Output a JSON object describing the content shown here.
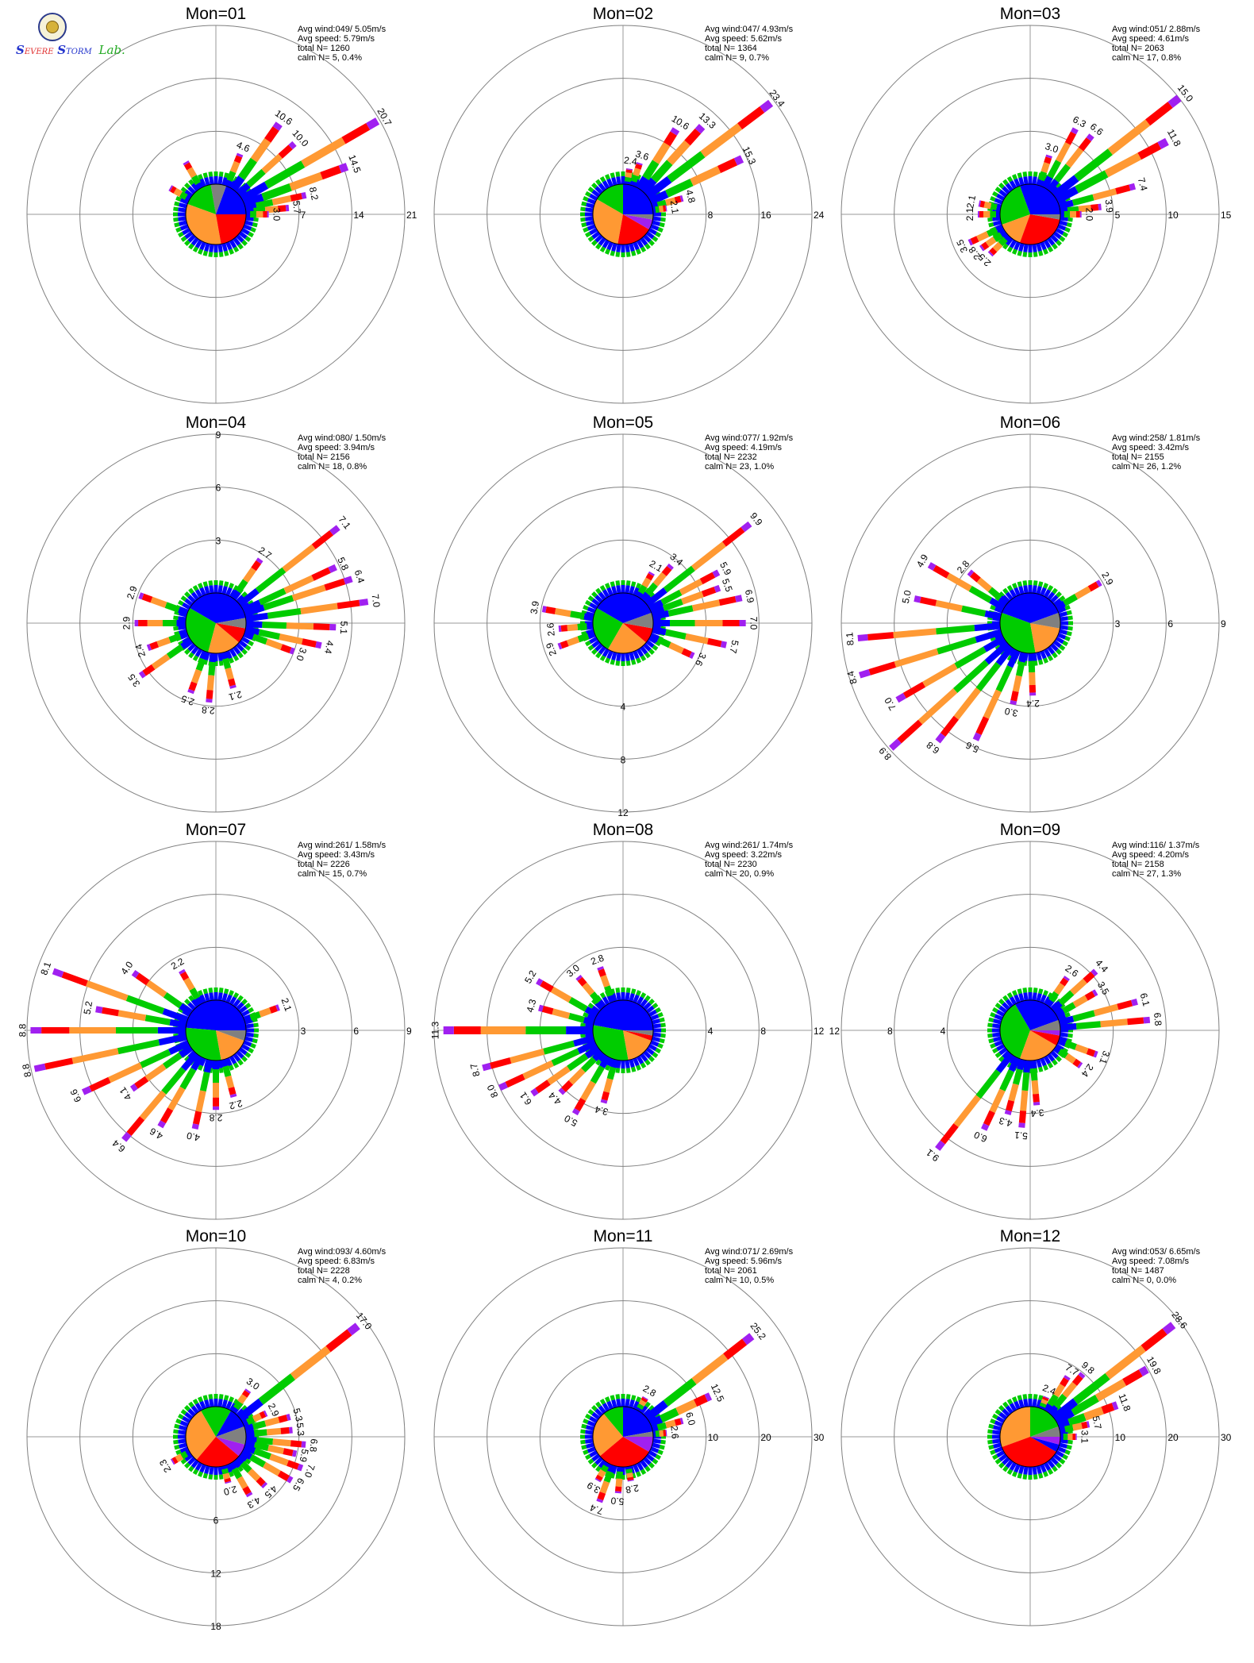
{
  "logo": {
    "text": "SEVERE STORM Lab."
  },
  "chart_data": [
    {
      "type": "polar-windrose",
      "title": "Mon=01",
      "stats": [
        "Avg wind:049/ 5.05m/s",
        "Avg speed: 5.79m/s",
        "total N=       1260",
        "calm N=     5,   0.4%"
      ],
      "rings": [
        7,
        14,
        21
      ],
      "ring_label_side": "right",
      "spokes": [
        [
          20,
          14.5
        ],
        [
          30,
          20.7
        ],
        [
          42,
          10.0
        ],
        [
          55,
          10.6
        ],
        [
          68,
          4.6
        ],
        [
          120,
          4.0
        ],
        [
          150,
          3.0
        ],
        [
          12,
          8.2
        ],
        [
          5,
          5.7
        ],
        [
          0,
          3.0
        ]
      ],
      "spoke_labels": [
        "14.5",
        "20.7",
        "10.0",
        "10.6",
        "4.6",
        "",
        "",
        "8.2",
        "5.7",
        "3.0"
      ],
      "pie": [
        [
          "#0000ff",
          0,
          70
        ],
        [
          "#808080",
          70,
          100
        ],
        [
          "#00cc00",
          100,
          160
        ],
        [
          "#ff9933",
          160,
          280
        ],
        [
          "#ff0000",
          280,
          360
        ]
      ]
    },
    {
      "type": "polar-windrose",
      "title": "Mon=02",
      "stats": [
        "Avg wind:047/ 4.93m/s",
        "Avg speed: 5.62m/s",
        "total N=       1364",
        "calm N=     9,   0.7%"
      ],
      "rings": [
        8,
        16,
        24
      ],
      "ring_label_side": "right",
      "spokes": [
        [
          25,
          15.3
        ],
        [
          37,
          23.4
        ],
        [
          48,
          13.3
        ],
        [
          58,
          10.6
        ],
        [
          72,
          3.6
        ],
        [
          82,
          2.4
        ],
        [
          15,
          4.8
        ],
        [
          8,
          2.1
        ]
      ],
      "spoke_labels": [
        "15.3",
        "23.4",
        "13.3",
        "10.6",
        "3.6",
        "2.4",
        "4.8",
        "2.1"
      ],
      "pie": [
        [
          "#0000ff",
          0,
          90
        ],
        [
          "#00cc00",
          90,
          150
        ],
        [
          "#ff9933",
          150,
          260
        ],
        [
          "#ff0000",
          260,
          330
        ],
        [
          "#a020f0",
          330,
          350
        ],
        [
          "#808080",
          350,
          360
        ]
      ]
    },
    {
      "type": "polar-windrose",
      "title": "Mon=03",
      "stats": [
        "Avg wind:051/ 2.88m/s",
        "Avg speed: 4.61m/s",
        "total N=       2063",
        "calm N=    17,   0.8%"
      ],
      "rings": [
        5,
        10,
        15
      ],
      "ring_label_side": "right",
      "spokes": [
        [
          28,
          11.8
        ],
        [
          38,
          15.0
        ],
        [
          52,
          6.6
        ],
        [
          62,
          6.3
        ],
        [
          72,
          3.0
        ],
        [
          15,
          7.4
        ],
        [
          6,
          3.9
        ],
        [
          0,
          2.0
        ],
        [
          168,
          2.1
        ],
        [
          180,
          2.1
        ],
        [
          205,
          3.5
        ],
        [
          215,
          2.8
        ],
        [
          225,
          2.5
        ]
      ],
      "spoke_labels": [
        "11.8",
        "15.0",
        "6.6",
        "6.3",
        "3.0",
        "7.4",
        "3.9",
        "2.0",
        "2.1",
        "2.1",
        "3.5",
        "2.8",
        "2.5"
      ],
      "pie": [
        [
          "#0000ff",
          0,
          110
        ],
        [
          "#00cc00",
          110,
          200
        ],
        [
          "#ff9933",
          200,
          250
        ],
        [
          "#ff0000",
          250,
          350
        ],
        [
          "#808080",
          350,
          360
        ]
      ]
    },
    {
      "type": "polar-windrose",
      "title": "Mon=04",
      "stats": [
        "Avg wind:080/ 1.50m/s",
        "Avg speed: 3.94m/s",
        "total N=       2156",
        "calm N=    18,   0.8%"
      ],
      "rings": [
        3,
        6,
        9
      ],
      "ring_label_side": "top",
      "spokes": [
        [
          38,
          7.1
        ],
        [
          25,
          5.8
        ],
        [
          18,
          6.4
        ],
        [
          8,
          7.0
        ],
        [
          -2,
          5.1
        ],
        [
          -12,
          4.4
        ],
        [
          -20,
          3.0
        ],
        [
          55,
          2.7
        ],
        [
          160,
          2.9
        ],
        [
          180,
          2.9
        ],
        [
          200,
          2.4
        ],
        [
          215,
          3.5
        ],
        [
          250,
          2.5
        ],
        [
          265,
          2.8
        ],
        [
          285,
          2.1
        ]
      ],
      "spoke_labels": [
        "7.1",
        "5.8",
        "6.4",
        "7.0",
        "5.1",
        "4.4",
        "3.0",
        "2.7",
        "2.9",
        "2.9",
        "2.4",
        "3.5",
        "2.5",
        "2.8",
        "2.1"
      ],
      "pie": [
        [
          "#0000ff",
          10,
          150
        ],
        [
          "#00cc00",
          150,
          255
        ],
        [
          "#ff9933",
          255,
          320
        ],
        [
          "#ff0000",
          320,
          350
        ],
        [
          "#808080",
          350,
          370
        ]
      ]
    },
    {
      "type": "polar-windrose",
      "title": "Mon=05",
      "stats": [
        "Avg wind:077/ 1.92m/s",
        "Avg speed: 4.19m/s",
        "total N=       2232",
        "calm N=    23,   1.0%"
      ],
      "rings": [
        4,
        8,
        12
      ],
      "ring_label_side": "bottom",
      "spokes": [
        [
          38,
          9.9
        ],
        [
          28,
          5.9
        ],
        [
          20,
          5.5
        ],
        [
          12,
          6.9
        ],
        [
          0,
          7.0
        ],
        [
          -12,
          5.7
        ],
        [
          -25,
          3.6
        ],
        [
          50,
          3.4
        ],
        [
          60,
          2.1
        ],
        [
          170,
          3.9
        ],
        [
          185,
          2.6
        ],
        [
          200,
          2.9
        ]
      ],
      "spoke_labels": [
        "9.9",
        "5.9",
        "5.5",
        "6.9",
        "7.0",
        "5.7",
        "3.6",
        "3.4",
        "2.1",
        "3.9",
        "2.6",
        "2.9"
      ],
      "pie": [
        [
          "#0000ff",
          20,
          150
        ],
        [
          "#00cc00",
          150,
          240
        ],
        [
          "#ff9933",
          240,
          320
        ],
        [
          "#ff0000",
          320,
          350
        ],
        [
          "#808080",
          350,
          380
        ]
      ]
    },
    {
      "type": "polar-windrose",
      "title": "Mon=06",
      "stats": [
        "Avg wind:258/ 1.81m/s",
        "Avg speed: 3.42m/s",
        "total N=       2155",
        "calm N=    26,   1.2%"
      ],
      "rings": [
        3,
        6,
        9
      ],
      "ring_label_side": "right",
      "spokes": [
        [
          30,
          2.9
        ],
        [
          168,
          5.0
        ],
        [
          185,
          8.1
        ],
        [
          197,
          8.4
        ],
        [
          210,
          7.0
        ],
        [
          222,
          8.9
        ],
        [
          232,
          6.8
        ],
        [
          245,
          5.6
        ],
        [
          258,
          3.0
        ],
        [
          272,
          2.4
        ],
        [
          140,
          2.8
        ],
        [
          150,
          4.9
        ]
      ],
      "spoke_labels": [
        "2.9",
        "5.0",
        "8.1",
        "8.4",
        "7.0",
        "8.9",
        "6.8",
        "5.6",
        "3.0",
        "2.4",
        "2.8",
        "4.9"
      ],
      "pie": [
        [
          "#0000ff",
          20,
          160
        ],
        [
          "#00cc00",
          160,
          280
        ],
        [
          "#ff9933",
          280,
          350
        ],
        [
          "#808080",
          350,
          380
        ]
      ]
    },
    {
      "type": "polar-windrose",
      "title": "Mon=07",
      "stats": [
        "Avg wind:261/ 1.58m/s",
        "Avg speed: 3.43m/s",
        "total N=       2226",
        "calm N=    15,   0.7%"
      ],
      "rings": [
        3,
        6,
        9
      ],
      "ring_label_side": "right",
      "spokes": [
        [
          160,
          8.1
        ],
        [
          170,
          5.2
        ],
        [
          180,
          8.8
        ],
        [
          192,
          8.8
        ],
        [
          205,
          6.6
        ],
        [
          215,
          4.1
        ],
        [
          230,
          6.4
        ],
        [
          240,
          4.6
        ],
        [
          258,
          4.0
        ],
        [
          270,
          2.8
        ],
        [
          285,
          2.2
        ],
        [
          145,
          4.0
        ],
        [
          120,
          2.2
        ],
        [
          20,
          2.1
        ]
      ],
      "spoke_labels": [
        "8.1",
        "5.2",
        "8.8",
        "8.8",
        "6.6",
        "4.1",
        "6.4",
        "4.6",
        "4.0",
        "2.8",
        "2.2",
        "4.0",
        "2.2",
        "2.1"
      ],
      "pie": [
        [
          "#0000ff",
          0,
          175
        ],
        [
          "#00cc00",
          175,
          280
        ],
        [
          "#ff9933",
          280,
          340
        ],
        [
          "#808080",
          340,
          360
        ]
      ]
    },
    {
      "type": "polar-windrose",
      "title": "Mon=08",
      "stats": [
        "Avg wind:261/ 1.74m/s",
        "Avg speed: 3.22m/s",
        "total N=       2230",
        "calm N=    20,   0.9%"
      ],
      "rings": [
        4,
        8,
        12
      ],
      "ring_label_side": "right",
      "spokes": [
        [
          180,
          11.3
        ],
        [
          195,
          8.7
        ],
        [
          205,
          8.0
        ],
        [
          215,
          6.1
        ],
        [
          225,
          4.4
        ],
        [
          240,
          5.0
        ],
        [
          255,
          3.4
        ],
        [
          165,
          4.3
        ],
        [
          150,
          5.2
        ],
        [
          130,
          3.0
        ],
        [
          110,
          2.8
        ]
      ],
      "spoke_labels": [
        "11.3",
        "8.7",
        "8.0",
        "6.1",
        "4.4",
        "5.0",
        "3.4",
        "4.3",
        "5.2",
        "3.0",
        "2.8"
      ],
      "pie": [
        [
          "#0000ff",
          0,
          170
        ],
        [
          "#00cc00",
          170,
          280
        ],
        [
          "#ff9933",
          280,
          340
        ],
        [
          "#ff0000",
          340,
          350
        ],
        [
          "#808080",
          350,
          360
        ]
      ]
    },
    {
      "type": "polar-windrose",
      "title": "Mon=09",
      "stats": [
        "Avg wind:116/ 1.37m/s",
        "Avg speed: 4.20m/s",
        "total N=       2158",
        "calm N=    27,   1.3%"
      ],
      "rings": [
        4,
        8,
        12
      ],
      "ring_label_side": "left",
      "spokes": [
        [
          5,
          6.8
        ],
        [
          15,
          6.1
        ],
        [
          30,
          3.5
        ],
        [
          42,
          4.4
        ],
        [
          55,
          2.6
        ],
        [
          -20,
          3.1
        ],
        [
          -35,
          2.4
        ],
        [
          232,
          9.1
        ],
        [
          245,
          6.0
        ],
        [
          255,
          4.3
        ],
        [
          265,
          5.1
        ],
        [
          275,
          3.4
        ]
      ],
      "spoke_labels": [
        "6.8",
        "6.1",
        "3.5",
        "4.4",
        "2.6",
        "3.1",
        "2.4",
        "9.1",
        "6.0",
        "4.3",
        "5.1",
        "3.4"
      ],
      "pie": [
        [
          "#0000ff",
          20,
          120
        ],
        [
          "#00cc00",
          120,
          250
        ],
        [
          "#ff9933",
          250,
          330
        ],
        [
          "#ff0000",
          330,
          350
        ],
        [
          "#a020f0",
          350,
          360
        ],
        [
          "#808080",
          0,
          20
        ]
      ]
    },
    {
      "type": "polar-windrose",
      "title": "Mon=10",
      "stats": [
        "Avg wind:093/ 4.60m/s",
        "Avg speed: 6.83m/s",
        "total N=       2228",
        "calm N=     4,   0.2%"
      ],
      "rings": [
        6,
        12,
        18
      ],
      "ring_label_side": "bottom",
      "spokes": [
        [
          38,
          17.0
        ],
        [
          15,
          5.3
        ],
        [
          5,
          5.3
        ],
        [
          -5,
          6.8
        ],
        [
          -12,
          5.9
        ],
        [
          -20,
          7.0
        ],
        [
          25,
          2.9
        ],
        [
          55,
          3.0
        ],
        [
          -30,
          6.5
        ],
        [
          -45,
          4.5
        ],
        [
          -60,
          4.3
        ],
        [
          -75,
          2.0
        ],
        [
          210,
          2.3
        ]
      ],
      "spoke_labels": [
        "17.0",
        "5.3",
        "5.3",
        "6.8",
        "5.9",
        "7.0",
        "2.9",
        "3.0",
        "6.5",
        "4.5",
        "4.3",
        "2.0",
        "2.3"
      ],
      "pie": [
        [
          "#0000ff",
          20,
          60
        ],
        [
          "#00cc00",
          60,
          120
        ],
        [
          "#ff9933",
          120,
          230
        ],
        [
          "#ff0000",
          230,
          320
        ],
        [
          "#a020f0",
          320,
          345
        ],
        [
          "#808080",
          345,
          380
        ]
      ]
    },
    {
      "type": "polar-windrose",
      "title": "Mon=11",
      "stats": [
        "Avg wind:071/ 2.69m/s",
        "Avg speed: 5.96m/s",
        "total N=       2061",
        "calm N=    10,   0.5%"
      ],
      "rings": [
        10,
        20,
        30
      ],
      "ring_label_side": "right",
      "spokes": [
        [
          38,
          25.2
        ],
        [
          25,
          12.5
        ],
        [
          15,
          6.0
        ],
        [
          5,
          2.6
        ],
        [
          60,
          2.8
        ],
        [
          250,
          7.4
        ],
        [
          240,
          3.9
        ],
        [
          265,
          5.0
        ],
        [
          280,
          2.8
        ]
      ],
      "spoke_labels": [
        "25.2",
        "12.5",
        "6.0",
        "2.6",
        "2.8",
        "7.4",
        "3.9",
        "5.0",
        "2.8"
      ],
      "pie": [
        [
          "#0000ff",
          10,
          90
        ],
        [
          "#00cc00",
          90,
          130
        ],
        [
          "#ff9933",
          130,
          220
        ],
        [
          "#ff0000",
          220,
          330
        ],
        [
          "#a020f0",
          330,
          360
        ],
        [
          "#808080",
          0,
          10
        ]
      ]
    },
    {
      "type": "polar-windrose",
      "title": "Mon=12",
      "stats": [
        "Avg wind:053/ 6.65m/s",
        "Avg speed: 7.08m/s",
        "total N=       1487",
        "calm N=     0,   0.0%"
      ],
      "rings": [
        10,
        20,
        30
      ],
      "ring_label_side": "right",
      "spokes": [
        [
          30,
          19.8
        ],
        [
          38,
          28.6
        ],
        [
          20,
          11.8
        ],
        [
          12,
          5.7
        ],
        [
          0,
          3.1
        ],
        [
          50,
          9.8
        ],
        [
          58,
          7.7
        ],
        [
          68,
          2.4
        ]
      ],
      "spoke_labels": [
        "19.8",
        "28.6",
        "11.8",
        "5.7",
        "3.1",
        "9.8",
        "7.7",
        "2.4"
      ],
      "pie": [
        [
          "#00cc00",
          20,
          90
        ],
        [
          "#ff9933",
          90,
          200
        ],
        [
          "#ff0000",
          200,
          330
        ],
        [
          "#0000ff",
          330,
          345
        ],
        [
          "#a020f0",
          345,
          360
        ],
        [
          "#808080",
          0,
          20
        ]
      ]
    }
  ],
  "colors": {
    "speed_bins": [
      "#0000ff",
      "#00cc00",
      "#ff9933",
      "#ff0000",
      "#a020f0"
    ],
    "calm": "#808080",
    "axis": "#9a9a9a"
  }
}
